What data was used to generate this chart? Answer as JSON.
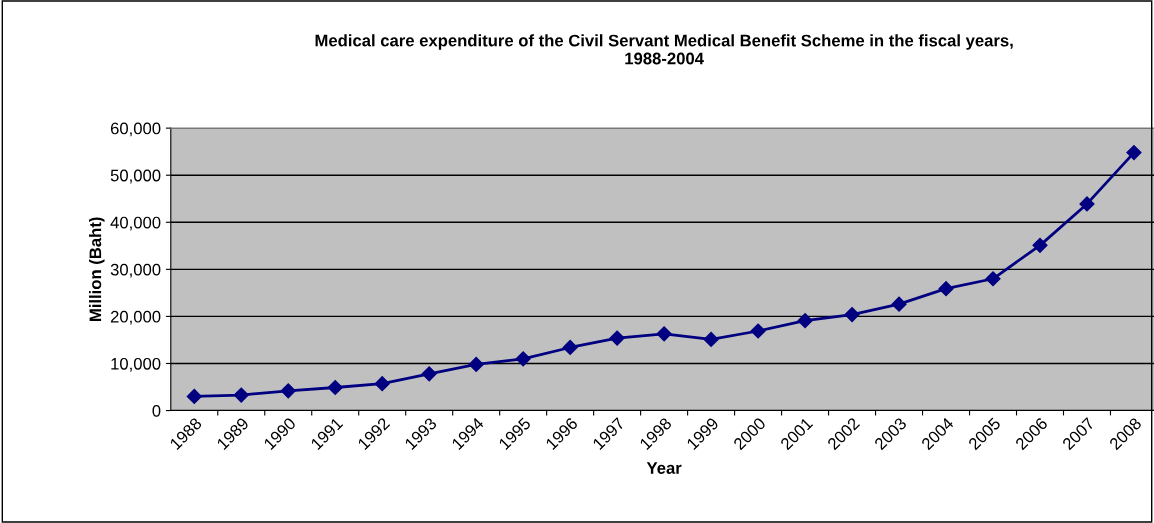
{
  "chart_data": {
    "type": "line",
    "title": "Medical care expenditure of the Civil Servant Medical Benefit Scheme in the fiscal years,\n1988-2004",
    "xlabel": "Year",
    "ylabel": "Million (Baht)",
    "categories": [
      "1988",
      "1989",
      "1990",
      "1991",
      "1992",
      "1993",
      "1994",
      "1995",
      "1996",
      "1997",
      "1998",
      "1999",
      "2000",
      "2001",
      "2002",
      "2003",
      "2004",
      "2005",
      "2006",
      "2007",
      "2008"
    ],
    "series": [
      {
        "color": "#000080",
        "values": [
          3000,
          3300,
          4200,
          4900,
          5700,
          7800,
          9800,
          11000,
          13400,
          15400,
          16300,
          15100,
          16900,
          19100,
          20400,
          22600,
          25900,
          28000,
          35100,
          43900,
          54800
        ]
      }
    ],
    "ylim": [
      0,
      60000
    ],
    "yticks": [
      {
        "value": 0,
        "label": "0"
      },
      {
        "value": 10000,
        "label": "10,000"
      },
      {
        "value": 20000,
        "label": "20,000"
      },
      {
        "value": 30000,
        "label": "30,000"
      },
      {
        "value": 40000,
        "label": "40,000"
      },
      {
        "value": 50000,
        "label": "50,000"
      },
      {
        "value": 60000,
        "label": "60,000"
      }
    ],
    "grid": "y",
    "marker": "diamond",
    "line_style": "solid"
  }
}
